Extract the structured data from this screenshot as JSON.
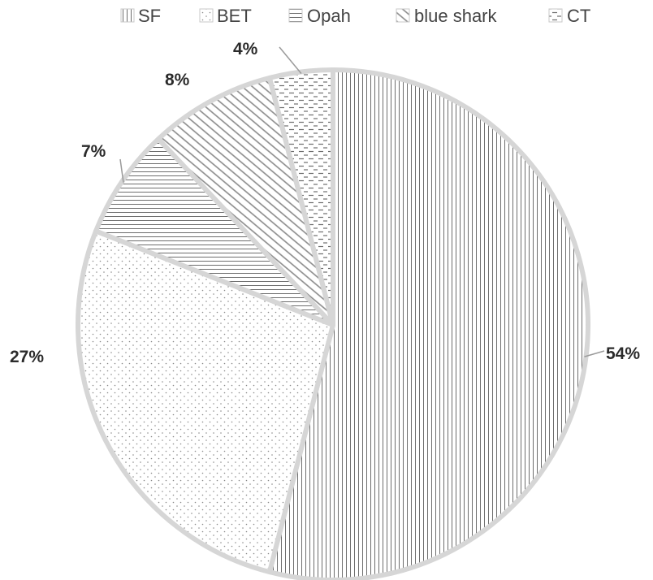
{
  "chart_data": {
    "type": "pie",
    "title": "",
    "legend_position": "top",
    "categories": [
      "SF",
      "BET",
      "Opah",
      "blue shark",
      "CT"
    ],
    "values": [
      54,
      27,
      7,
      8,
      4
    ],
    "labels": [
      "54%",
      "27%",
      "7%",
      "8%",
      "4%"
    ],
    "patterns": [
      "vertical-lines",
      "dots",
      "horizontal-lines",
      "diagonal-lines",
      "dashes"
    ],
    "colors": {
      "fill": "#ffffff",
      "stroke": "#d6d6d6",
      "pattern": "#6e6e6e",
      "text": "#2b2b2b"
    }
  }
}
